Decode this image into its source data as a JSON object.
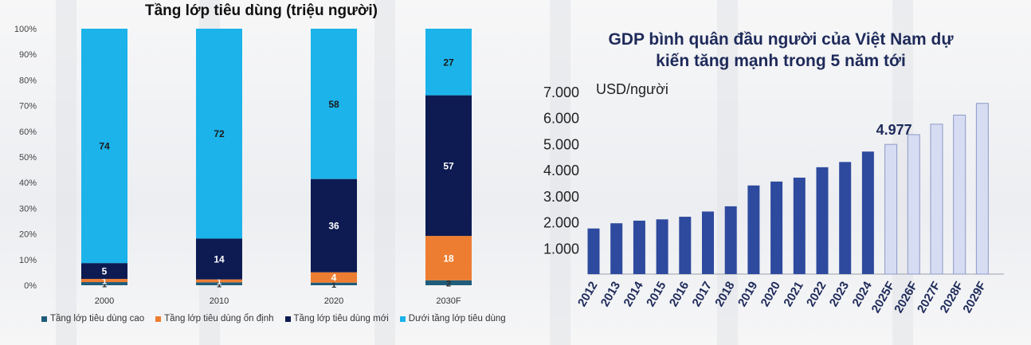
{
  "chart_data": [
    {
      "type": "bar",
      "stacked": true,
      "title": "Tầng lớp tiêu dùng (triệu người)",
      "categories": [
        "2000",
        "2010",
        "2020",
        "2030F"
      ],
      "series": [
        {
          "name": "Tầng lớp tiêu dùng cao",
          "color": "#1f5c7a",
          "values": [
            1,
            1,
            1,
            2
          ],
          "labels": [
            "1",
            "1",
            "1",
            "2"
          ]
        },
        {
          "name": "Tầng lớp tiêu dùng ổn định",
          "color": "#ed7d31",
          "values": [
            1,
            1,
            4,
            18
          ],
          "labels": [
            "1",
            "1",
            "4",
            "18"
          ]
        },
        {
          "name": "Tầng lớp tiêu dùng mới",
          "color": "#0d1b52",
          "values": [
            5,
            14,
            36,
            57
          ],
          "labels": [
            "5",
            "14",
            "36",
            "57"
          ]
        },
        {
          "name": "Dưới tầng lớp tiêu dùng",
          "color": "#1bb3ea",
          "values": [
            74,
            72,
            58,
            27
          ],
          "labels": [
            "74",
            "72",
            "58",
            "27"
          ]
        }
      ],
      "ytick_labels": [
        "0%",
        "10%",
        "20%",
        "30%",
        "40%",
        "50%",
        "60%",
        "70%",
        "80%",
        "90%",
        "100%"
      ],
      "ylim": [
        0,
        100
      ],
      "legend": "bottom",
      "grid": false
    },
    {
      "type": "bar",
      "title": "GDP bình quân đầu người của Việt Nam dự kiến tăng mạnh trong 5 năm tới",
      "ylabel": "USD/người",
      "categories": [
        "2012",
        "2013",
        "2014",
        "2015",
        "2016",
        "2017",
        "2018",
        "2019",
        "2020",
        "2021",
        "2022",
        "2023",
        "2024",
        "2025F",
        "2026F",
        "2027F",
        "2028F",
        "2029F"
      ],
      "values": [
        1750,
        1950,
        2050,
        2100,
        2200,
        2400,
        2600,
        3400,
        3550,
        3700,
        4100,
        4300,
        4700,
        4977,
        5350,
        5750,
        6100,
        6550
      ],
      "forecast_from": "2025F",
      "actual_color": "#2e4a9e",
      "forecast_color": "#d6dcf2",
      "forecast_border": "#8e99c8",
      "annotation": {
        "category": "2025F",
        "text": "4.977"
      },
      "ytick_labels": [
        "1.000",
        "2.000",
        "3.000",
        "4.000",
        "5.000",
        "6.000",
        "7.000"
      ],
      "ylim": [
        0,
        7000
      ],
      "grid": false
    }
  ]
}
